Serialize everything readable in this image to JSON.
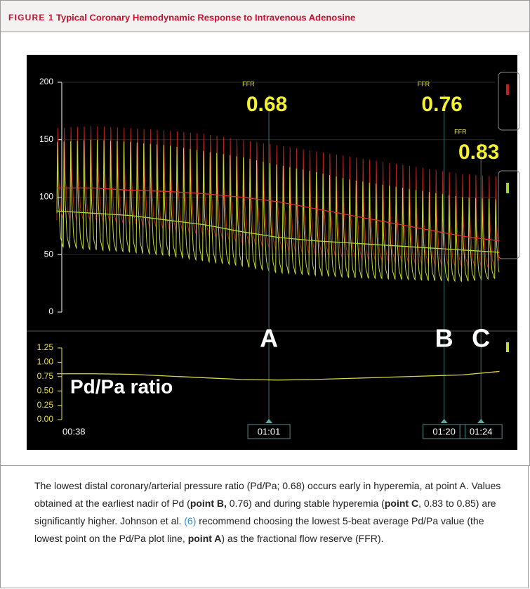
{
  "header": {
    "label": "FIGURE 1",
    "title": "Typical Coronary Hemodynamic Response to Intravenous Adenosine"
  },
  "chart_data": [
    {
      "type": "line",
      "xlim": [
        38,
        86.5
      ],
      "ylim": [
        0,
        200
      ],
      "yticks": [
        0,
        50,
        100,
        150,
        200
      ],
      "grid": true,
      "x": [
        38,
        42,
        46,
        50,
        54,
        58,
        62,
        66,
        70,
        74,
        78,
        82,
        86
      ],
      "waveforms": [
        {
          "color": "#b8221d",
          "systolic": [
            160,
            162,
            160,
            158,
            155,
            150,
            145,
            140,
            135,
            130,
            125,
            120,
            118
          ],
          "diastolic": [
            80,
            78,
            75,
            70,
            65,
            58,
            52,
            48,
            45,
            42,
            40,
            38,
            36
          ]
        },
        {
          "color": "#c4d93a",
          "systolic": [
            148,
            150,
            148,
            145,
            140,
            135,
            128,
            122,
            115,
            110,
            105,
            100,
            98
          ],
          "diastolic": [
            55,
            52,
            50,
            47,
            42,
            38,
            32,
            30,
            28,
            27,
            26,
            25,
            28
          ]
        }
      ],
      "series": [
        {
          "color": "#e0302a",
          "values": [
            108,
            108,
            106,
            105,
            103,
            100,
            96,
            90,
            84,
            78,
            72,
            66,
            62
          ]
        },
        {
          "color": "#a6dc3c",
          "values": [
            88,
            86,
            84,
            80,
            76,
            70,
            65,
            62,
            60,
            58,
            56,
            54,
            52
          ]
        }
      ],
      "markers": [
        {
          "x": 61,
          "label": "A",
          "title": "FFR",
          "value": 0.68
        },
        {
          "x": 80,
          "label": "B",
          "title": "FFR",
          "value": 0.76
        },
        {
          "x": 84,
          "label": "C",
          "title": "FFR",
          "value": 0.83
        }
      ]
    },
    {
      "type": "line",
      "xlim": [
        38,
        86.5
      ],
      "ylim": [
        0,
        1.25
      ],
      "yticks": [
        {
          "value": 0,
          "label": "0.00"
        },
        0.25,
        {
          "value": 0.5,
          "label": "0.50"
        },
        0.75,
        {
          "value": 1,
          "label": "1.00"
        },
        1.25
      ],
      "xticks": [
        {
          "value": 38,
          "label": "00:38"
        },
        {
          "value": 61,
          "label": "01:01"
        },
        {
          "value": 80,
          "label": "01:20"
        },
        {
          "value": 84,
          "label": "01:24"
        }
      ],
      "x": [
        38,
        42,
        46,
        50,
        54,
        58,
        62,
        66,
        70,
        74,
        78,
        82,
        86
      ],
      "series": [
        {
          "color": "#d8d44a",
          "values": [
            0.8,
            0.8,
            0.79,
            0.76,
            0.73,
            0.7,
            0.69,
            0.7,
            0.72,
            0.74,
            0.76,
            0.78,
            0.84
          ]
        }
      ],
      "annotation": "Pd/Pa ratio"
    }
  ],
  "caption": {
    "runs": [
      {
        "text": "The lowest distal coronary/arterial pressure ratio (Pd/Pa; 0.68) occurs early in hyperemia, at point A. Values obtained at the earliest nadir of Pd ("
      },
      {
        "text": "point B,",
        "bold": true
      },
      {
        "text": " 0.76) and during stable hyperemia ("
      },
      {
        "text": "point C",
        "bold": true
      },
      {
        "text": ", 0.83 to 0.85) are significantly higher. Johnson et al. "
      },
      {
        "text": "(6)",
        "link": true
      },
      {
        "text": " recommend choosing the lowest 5-beat average Pd/Pa value (the lowest point on the Pd/Pa plot line, "
      },
      {
        "text": "point A",
        "bold": true
      },
      {
        "text": ") as the fractional flow reserve (FFR)."
      }
    ]
  }
}
